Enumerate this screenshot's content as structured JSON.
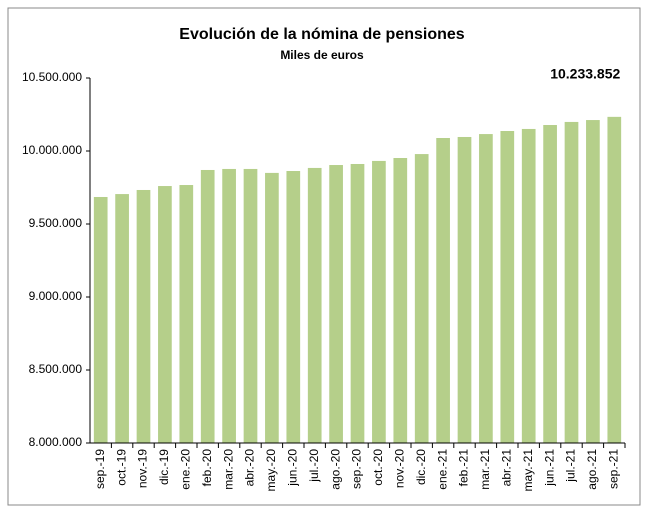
{
  "chart_data": {
    "type": "bar",
    "title": "Evolución de la nómina de pensiones",
    "subtitle": "Miles de euros",
    "categories": [
      "sep.-19",
      "oct.-19",
      "nov.-19",
      "dic.-19",
      "ene.-20",
      "feb.-20",
      "mar.-20",
      "abr.-20",
      "may.-20",
      "jun.-20",
      "jul.-20",
      "ago.-20",
      "sep.-20",
      "oct.-20",
      "nov.-20",
      "dic.-20",
      "ene.-21",
      "feb.-21",
      "mar.-21",
      "abr.-21",
      "may.-21",
      "jun.-21",
      "jul.-21",
      "ago.-21",
      "sep.-21"
    ],
    "values": [
      9685000,
      9705000,
      9733000,
      9760000,
      9767000,
      9870000,
      9877000,
      9877000,
      9850000,
      9863000,
      9884000,
      9904000,
      9911000,
      9932000,
      9952000,
      9979000,
      10089000,
      10096000,
      10116000,
      10137000,
      10151000,
      10178000,
      10199000,
      10212000,
      10233852
    ],
    "value_labels": [
      null,
      null,
      null,
      null,
      null,
      null,
      null,
      null,
      null,
      null,
      null,
      null,
      null,
      null,
      null,
      null,
      null,
      null,
      null,
      null,
      null,
      null,
      null,
      null,
      "10.233.852"
    ],
    "color": "#b5cf8a",
    "ylim": [
      8000000,
      10500000
    ],
    "yticks": [
      {
        "value": 8000000,
        "label": "8.000.000"
      },
      {
        "value": 8500000,
        "label": "8.500.000"
      },
      {
        "value": 9000000,
        "label": "9.000.000"
      },
      {
        "value": 9500000,
        "label": "9.500.000"
      },
      {
        "value": 10000000,
        "label": "10.000.000"
      },
      {
        "value": 10500000,
        "label": "10.500.000"
      }
    ],
    "grid": false
  }
}
